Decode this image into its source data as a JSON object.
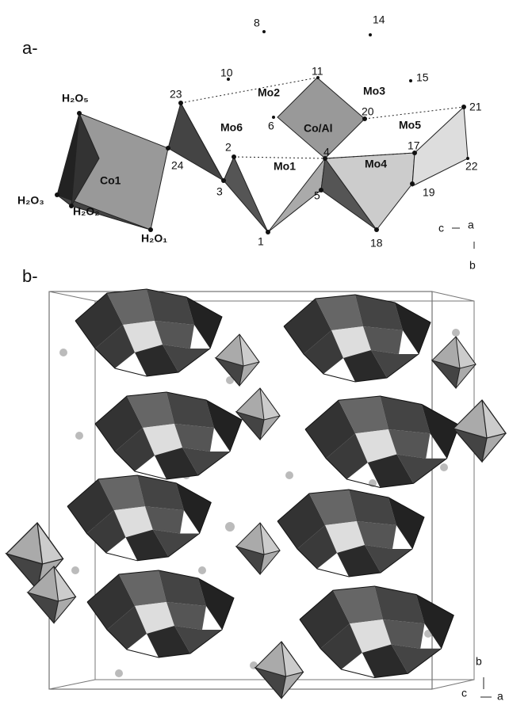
{
  "panel_a": {
    "tag": "a-",
    "labels": [
      "8",
      "14",
      "10",
      "11",
      "15",
      "Mo2",
      "Mo3",
      "23",
      "21",
      "H₂O₅",
      "Mo6",
      "6",
      "Co/Al",
      "20",
      "Mo5",
      "17",
      "2",
      "4",
      "24",
      "Mo1",
      "Mo4",
      "22",
      "Co1",
      "3",
      "5",
      "19",
      "H₂O₃",
      "H₂O₂",
      "H₂O₁",
      "1",
      "18"
    ],
    "axes": [
      "c",
      "a",
      "b"
    ]
  },
  "panel_b": {
    "tag": "b-",
    "axes": [
      "b",
      "c",
      "a"
    ]
  }
}
